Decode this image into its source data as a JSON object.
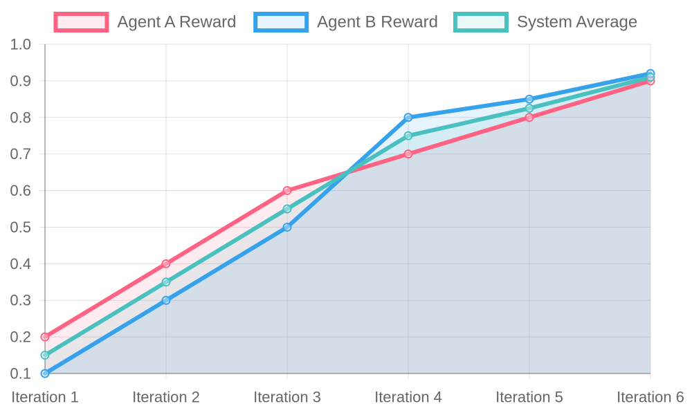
{
  "chart_data": {
    "type": "line",
    "categories": [
      "Iteration 1",
      "Iteration 2",
      "Iteration 3",
      "Iteration 4",
      "Iteration 5",
      "Iteration 6"
    ],
    "series": [
      {
        "name": "Agent A Reward",
        "values": [
          0.2,
          0.4,
          0.6,
          0.7,
          0.8,
          0.9
        ],
        "color": "#ff6384",
        "fill": "rgba(255,99,132,0.12)"
      },
      {
        "name": "Agent B Reward",
        "values": [
          0.1,
          0.3,
          0.5,
          0.8,
          0.85,
          0.92
        ],
        "color": "#36a2eb",
        "fill": "rgba(54,162,235,0.12)"
      },
      {
        "name": "System Average",
        "values": [
          0.15,
          0.35,
          0.55,
          0.75,
          0.825,
          0.91
        ],
        "color": "#4bc0c0",
        "fill": "rgba(75,192,192,0.12)"
      }
    ],
    "yticks": [
      "0.1",
      "0.2",
      "0.3",
      "0.4",
      "0.5",
      "0.6",
      "0.7",
      "0.8",
      "0.9",
      "1.0"
    ],
    "ylim": [
      0.1,
      1.0
    ],
    "title": "",
    "xlabel": "",
    "ylabel": "",
    "grid": true,
    "legend_position": "top",
    "filled": true
  }
}
